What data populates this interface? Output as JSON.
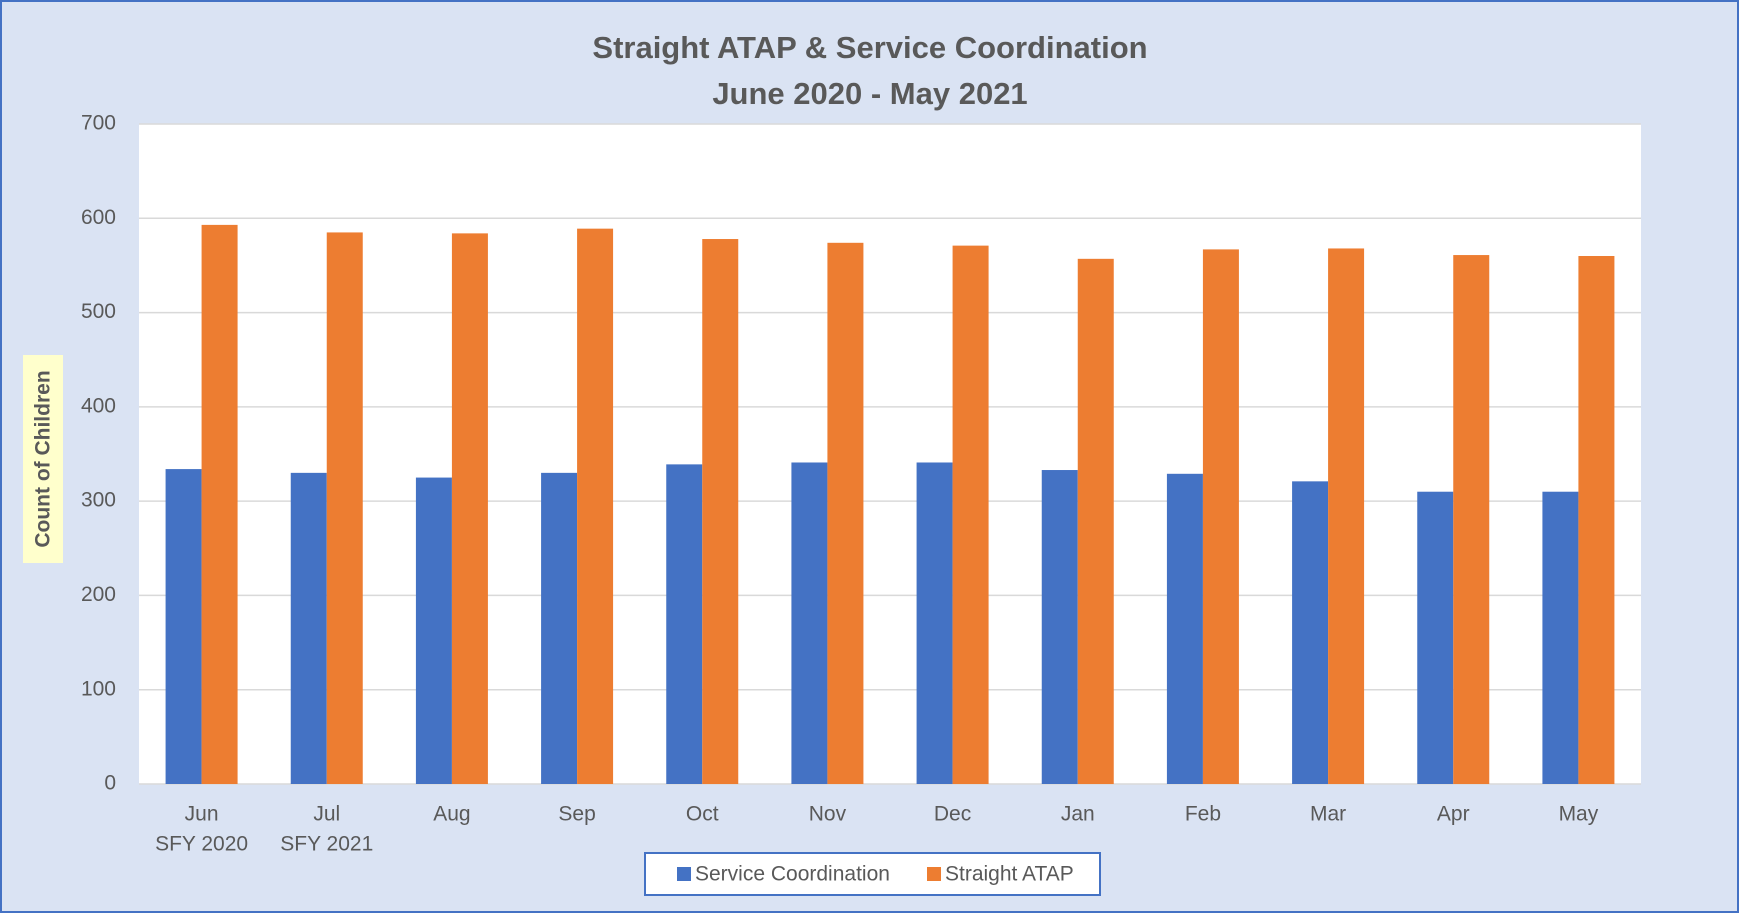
{
  "chart_data": {
    "type": "bar",
    "title": [
      "Straight ATAP & Service Coordination",
      "June  2020 - May 2021"
    ],
    "y_axis_label": "Count of Children",
    "categories": [
      [
        "Jun",
        "SFY 2020"
      ],
      [
        "Jul",
        "SFY 2021"
      ],
      [
        "Aug"
      ],
      [
        "Sep"
      ],
      [
        "Oct"
      ],
      [
        "Nov"
      ],
      [
        "Dec"
      ],
      [
        "Jan"
      ],
      [
        "Feb"
      ],
      [
        "Mar"
      ],
      [
        "Apr"
      ],
      [
        "May"
      ]
    ],
    "series": [
      {
        "name": "Service Coordination",
        "color": "#4472c4",
        "values": [
          334,
          330,
          325,
          330,
          339,
          341,
          341,
          333,
          329,
          321,
          310,
          310
        ]
      },
      {
        "name": "Straight ATAP",
        "color": "#ed7d31",
        "values": [
          593,
          585,
          584,
          589,
          578,
          574,
          571,
          557,
          567,
          568,
          561,
          560
        ]
      }
    ],
    "ylim": [
      0,
      700
    ],
    "yticks": [
      0,
      100,
      200,
      300,
      400,
      500,
      600,
      700
    ],
    "grid": true,
    "legend": "bottom"
  }
}
